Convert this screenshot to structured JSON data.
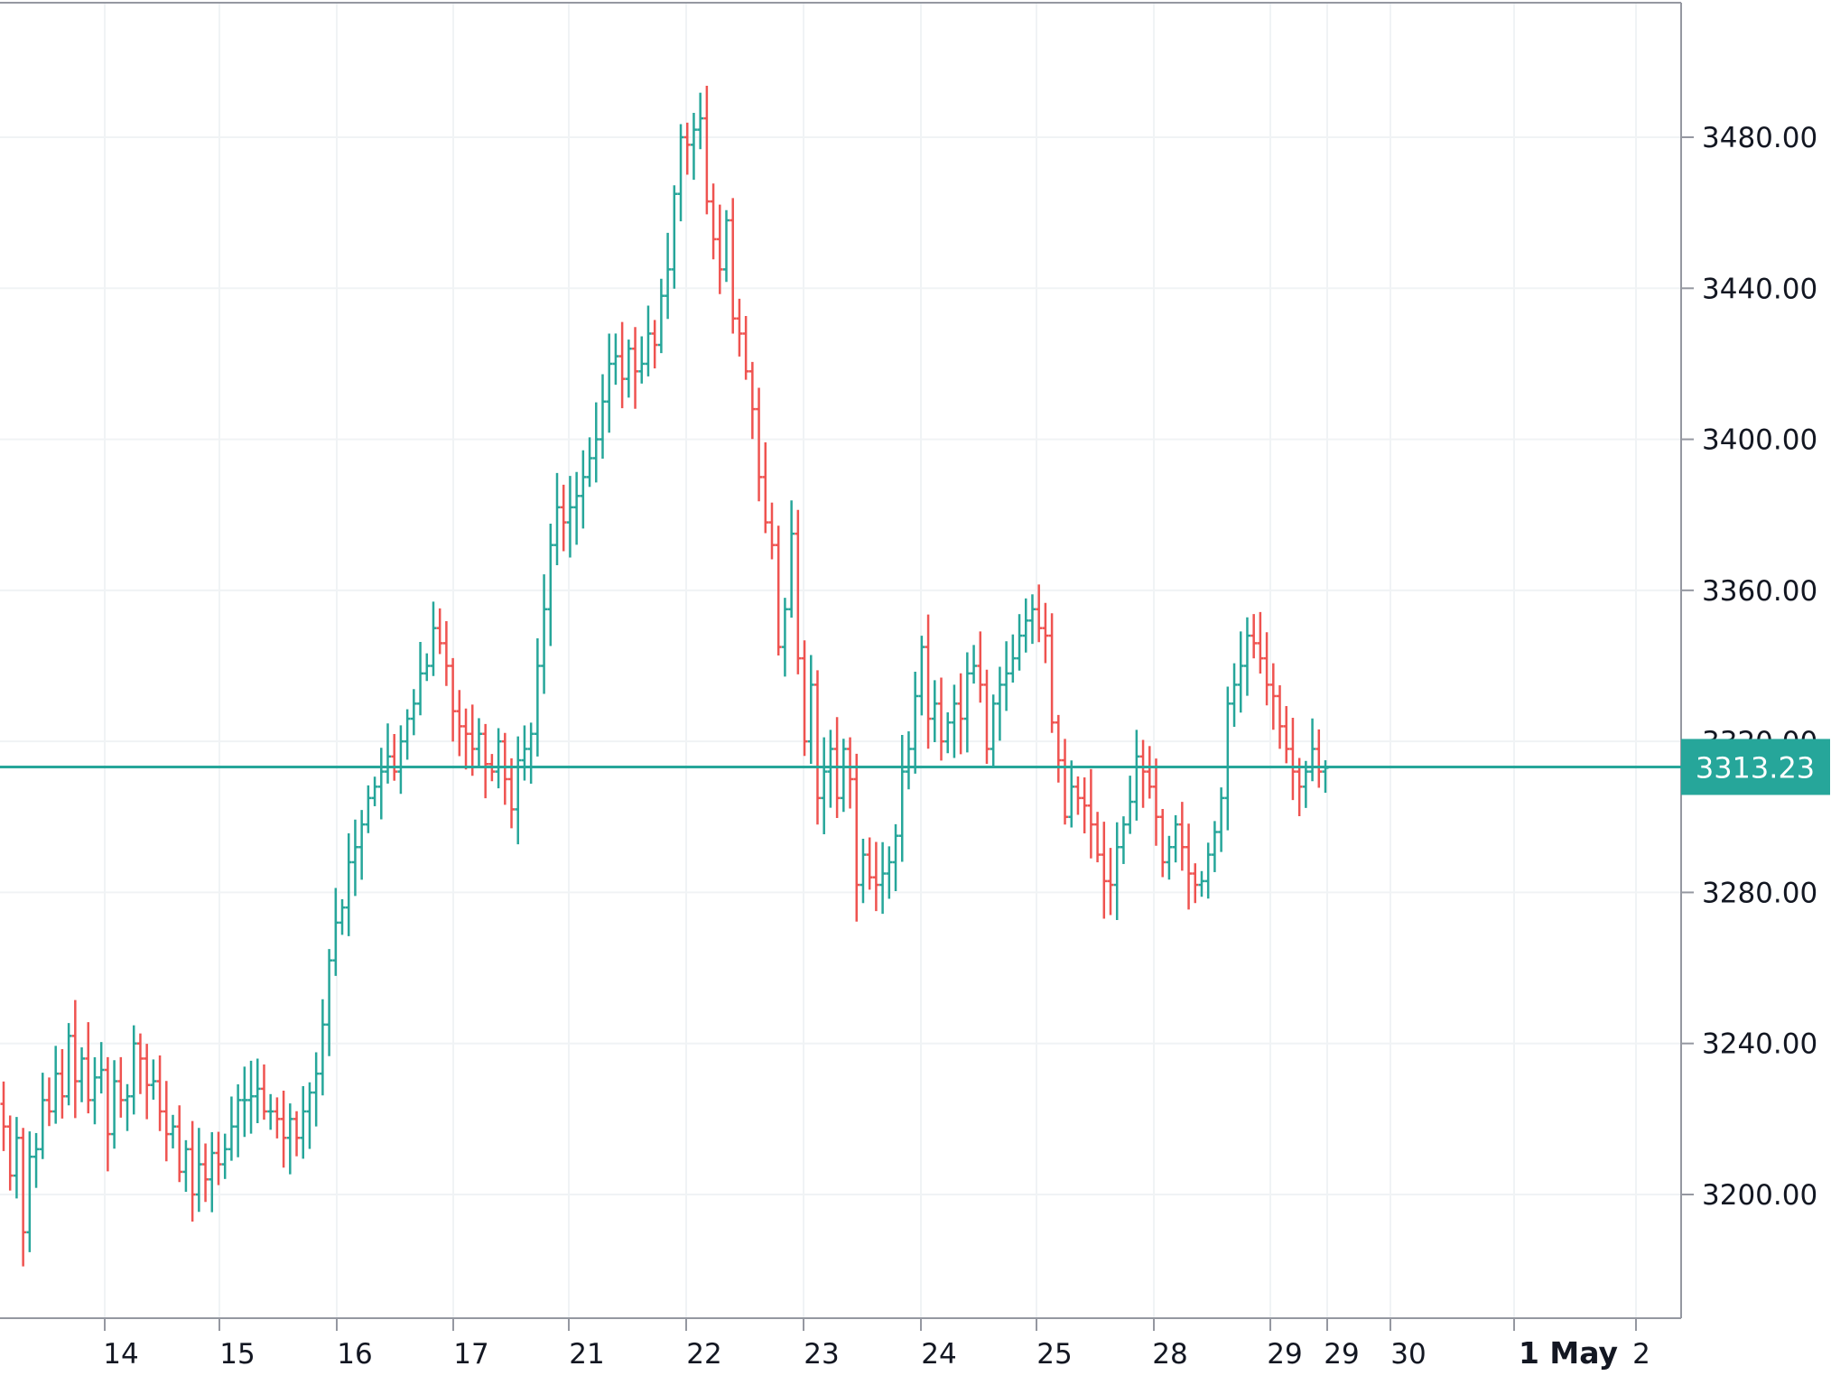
{
  "chart_data": {
    "type": "line",
    "style": "ohlc-bars",
    "y_tick_labels": [
      "3480.00",
      "3440.00",
      "3400.00",
      "3360.00",
      "3320.00",
      "3280.00",
      "3240.00",
      "3200.00"
    ],
    "y_tick_values": [
      3480,
      3440,
      3400,
      3360,
      3320,
      3280,
      3240,
      3200
    ],
    "ylim": [
      3180,
      3515
    ],
    "x_tick_labels": [
      "14",
      "15",
      "16",
      "17",
      "21",
      "22",
      "23",
      "24",
      "25",
      "28",
      "29",
      "29",
      "30",
      "1 May",
      "2"
    ],
    "grid": true,
    "last_price": {
      "value": 3313.23,
      "label": "3313.23"
    },
    "colors": {
      "up": "#26a69a",
      "down": "#ef5350",
      "grid": "#f0f3f5",
      "axis": "#9598a1",
      "text": "#131722",
      "price_line": "#26a69a"
    },
    "series": [
      {
        "values": [
          3218,
          3205,
          3215,
          3190,
          3210,
          3212,
          3225,
          3222,
          3232,
          3226,
          3242,
          3230,
          3236,
          3225,
          3231,
          3233,
          3216,
          3230,
          3225,
          3226,
          3240,
          3236,
          3229,
          3230,
          3222,
          3216,
          3218,
          3206,
          3212,
          3200,
          3208,
          3204,
          3211,
          3208,
          3212,
          3218,
          3225,
          3225,
          3226,
          3228,
          3222,
          3222,
          3220,
          3215,
          3220,
          3215,
          3222,
          3227,
          3232,
          3245,
          3262,
          3272,
          3276,
          3288,
          3292,
          3298,
          3305,
          3308,
          3312,
          3316,
          3312,
          3320,
          3326,
          3330,
          3338,
          3340,
          3350,
          3346,
          3340,
          3328,
          3324,
          3322,
          3318,
          3322,
          3314,
          3312,
          3320,
          3310,
          3302,
          3315,
          3318,
          3322,
          3340,
          3355,
          3372,
          3382,
          3378,
          3382,
          3385,
          3390,
          3395,
          3400,
          3410,
          3420,
          3422,
          3416,
          3424,
          3418,
          3420,
          3428,
          3425,
          3438,
          3445,
          3465,
          3480,
          3478,
          3482,
          3485,
          3463,
          3453,
          3445,
          3458,
          3432,
          3428,
          3418,
          3408,
          3390,
          3378,
          3372,
          3345,
          3355,
          3375,
          3342,
          3320,
          3335,
          3305,
          3312,
          3318,
          3305,
          3318,
          3310,
          3282,
          3290,
          3284,
          3282,
          3285,
          3288,
          3295,
          3312,
          3318,
          3332,
          3345,
          3326,
          3330,
          3320,
          3325,
          3330,
          3326,
          3338,
          3340,
          3335,
          3318,
          3330,
          3335,
          3338,
          3342,
          3348,
          3352,
          3355,
          3350,
          3348,
          3325,
          3315,
          3300,
          3308,
          3305,
          3303,
          3298,
          3290,
          3283,
          3282,
          3292,
          3298,
          3304,
          3316,
          3312,
          3308,
          3300,
          3288,
          3292,
          3298,
          3292,
          3285,
          3282,
          3283,
          3290,
          3296,
          3305,
          3330,
          3335,
          3340,
          3348,
          3346,
          3342,
          3335,
          3332,
          3324,
          3318,
          3312,
          3308,
          3312,
          3318,
          3312,
          3313
        ]
      }
    ]
  }
}
